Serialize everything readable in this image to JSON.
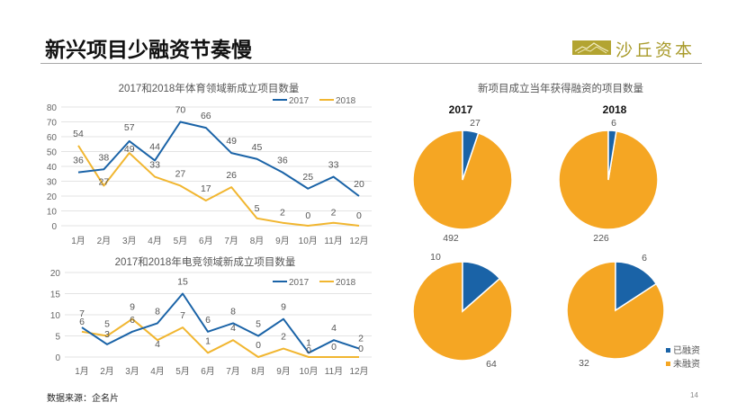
{
  "page": {
    "title": "新兴项目少融资节奏慢",
    "logo_text": "沙丘资本",
    "footer": "数据来源：企名片",
    "page_number": "14"
  },
  "colors": {
    "blue": "#1a63a7",
    "orange": "#f5a623",
    "line2018": "#f1b630",
    "grid": "#e3e3e3",
    "axis_text": "#666666",
    "logo": "#a89a2a"
  },
  "chart_data": [
    {
      "type": "line",
      "title": "2017和2018年体育领域新成立项目数量",
      "categories": [
        "1月",
        "2月",
        "3月",
        "4月",
        "5月",
        "6月",
        "7月",
        "8月",
        "9月",
        "10月",
        "11月",
        "12月"
      ],
      "ylim": [
        0,
        80
      ],
      "yticks": [
        0,
        10,
        20,
        30,
        40,
        50,
        60,
        70,
        80
      ],
      "grid": true,
      "legend": "top-right",
      "series": [
        {
          "name": "2017",
          "values": [
            36,
            38,
            57,
            44,
            70,
            66,
            49,
            45,
            36,
            25,
            33,
            20
          ]
        },
        {
          "name": "2018",
          "values": [
            54,
            27,
            49,
            33,
            27,
            17,
            26,
            5,
            2,
            0,
            2,
            0
          ]
        }
      ]
    },
    {
      "type": "line",
      "title": "2017和2018年电竞领域新成立项目数量",
      "categories": [
        "1月",
        "2月",
        "3月",
        "4月",
        "5月",
        "6月",
        "7月",
        "8月",
        "9月",
        "10月",
        "11月",
        "12月"
      ],
      "ylim": [
        0,
        20
      ],
      "yticks": [
        0,
        5,
        10,
        15,
        20
      ],
      "grid": true,
      "legend": "top-right",
      "series": [
        {
          "name": "2017",
          "values": [
            7,
            3,
            6,
            8,
            15,
            6,
            8,
            5,
            9,
            1,
            4,
            2
          ]
        },
        {
          "name": "2018",
          "values": [
            6,
            5,
            9,
            4,
            7,
            1,
            4,
            0,
            2,
            0,
            0,
            0
          ]
        }
      ]
    },
    {
      "type": "pie",
      "title": "新项目成立当年获得融资的项目数量",
      "legend": "bottom-right",
      "legend_entries": [
        "已融资",
        "未融资"
      ],
      "pies": [
        {
          "label": "2017",
          "funded": 27,
          "unfunded": 492
        },
        {
          "label": "2018",
          "funded": 6,
          "unfunded": 226
        },
        {
          "label": "",
          "funded": 10,
          "unfunded": 64
        },
        {
          "label": "",
          "funded": 6,
          "unfunded": 32
        }
      ]
    }
  ]
}
